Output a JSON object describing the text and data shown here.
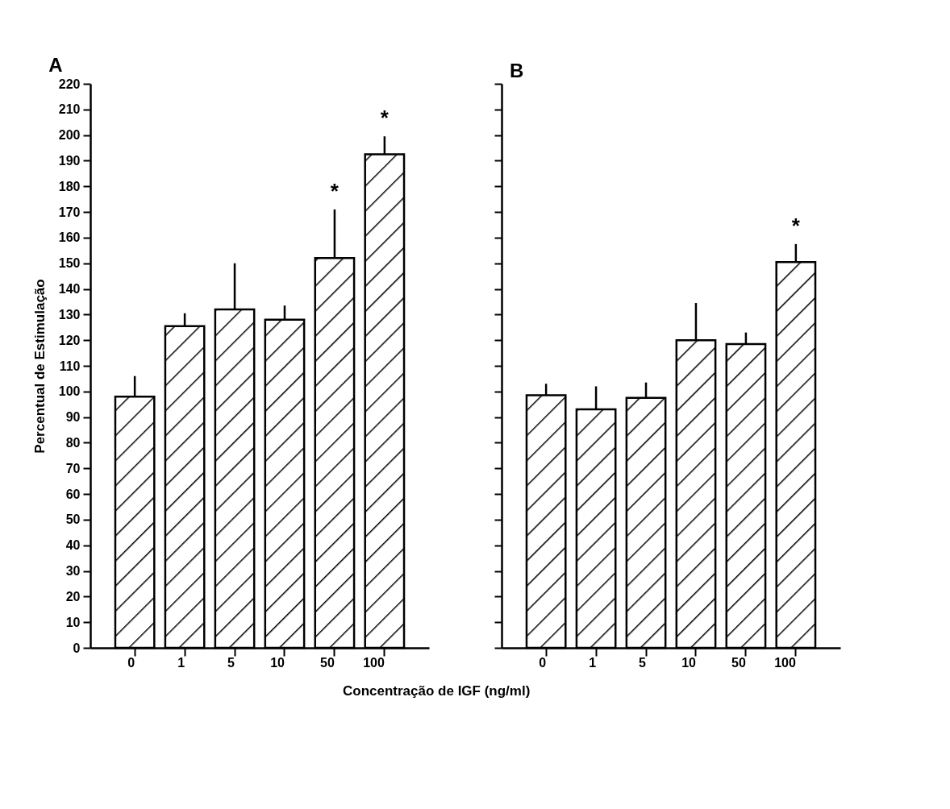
{
  "chart_data": [
    {
      "type": "bar",
      "title": "A",
      "xlabel": "Concentração de IGF (ng/ml)",
      "ylabel": "Percentual de Estimulação",
      "categories": [
        "0",
        "1",
        "5",
        "10",
        "50",
        "100"
      ],
      "color": "#000000",
      "values": [
        98,
        125.5,
        132,
        128,
        152,
        192.5
      ],
      "errors": [
        [
          98,
          106
        ],
        [
          125.5,
          130.5
        ],
        [
          132,
          150
        ],
        [
          128,
          133.5
        ],
        [
          152,
          171
        ],
        [
          192.5,
          199.5
        ]
      ],
      "ylim": [
        0,
        220
      ],
      "yticks": [
        0,
        10,
        20,
        30,
        40,
        50,
        60,
        70,
        80,
        90,
        100,
        110,
        120,
        130,
        140,
        150,
        160,
        170,
        180,
        190,
        200,
        210,
        220
      ],
      "annotations": [
        {
          "text": "*",
          "x": "50",
          "y": 152
        },
        {
          "text": "*",
          "x": "100",
          "y": 192.5
        }
      ],
      "grid": false
    },
    {
      "type": "bar",
      "title": "B",
      "categories": [
        "0",
        "1",
        "5",
        "10",
        "50",
        "100"
      ],
      "color": "#000000",
      "values": [
        98.5,
        93,
        97.5,
        120,
        118.5,
        150.5
      ],
      "errors": [
        [
          98.5,
          103
        ],
        [
          93,
          102
        ],
        [
          97.5,
          103.5
        ],
        [
          120,
          134.5
        ],
        [
          118.5,
          123
        ],
        [
          150.5,
          157.5
        ]
      ],
      "ylim": [
        0,
        220
      ],
      "yticks": [
        0,
        10,
        20,
        30,
        40,
        50,
        60,
        70,
        80,
        90,
        100,
        110,
        120,
        130,
        140,
        150,
        160,
        170,
        180,
        190,
        200,
        210,
        220
      ],
      "tick_labels": "x",
      "annotations": [
        {
          "text": "*",
          "x": "100",
          "y": 150.5
        }
      ],
      "grid": false
    }
  ]
}
